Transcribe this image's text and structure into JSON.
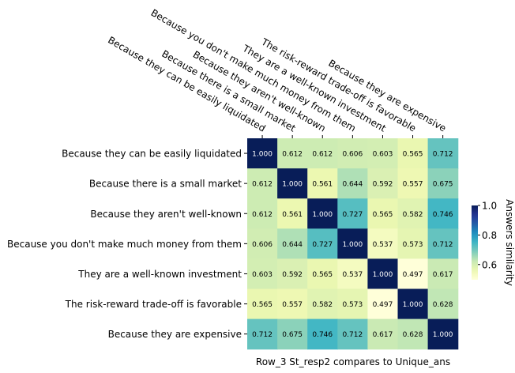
{
  "chart_data": {
    "type": "heatmap",
    "xlabel": "Row_3 St_resp2 compares to Unique_ans",
    "ylabel": "",
    "title": "",
    "row_labels": [
      "Because they can be easily liquidated",
      "Because there is a small market",
      "Because they aren't well-known",
      "Because you don't make much money from them",
      "They are a well-known investment",
      "The risk-reward trade-off is favorable",
      "Because they are expensive"
    ],
    "col_labels": [
      "Because they can be easily liquidated",
      "Because there is a small market",
      "Because they aren't well-known",
      "Because you don't make much money from them",
      "They are a well-known investment",
      "The risk-reward trade-off is favorable",
      "Because they are expensive"
    ],
    "values": [
      [
        1.0,
        0.612,
        0.612,
        0.606,
        0.603,
        0.565,
        0.712
      ],
      [
        0.612,
        1.0,
        0.561,
        0.644,
        0.592,
        0.557,
        0.675
      ],
      [
        0.612,
        0.561,
        1.0,
        0.727,
        0.565,
        0.582,
        0.746
      ],
      [
        0.606,
        0.644,
        0.727,
        1.0,
        0.537,
        0.573,
        0.712
      ],
      [
        0.603,
        0.592,
        0.565,
        0.537,
        1.0,
        0.497,
        0.617
      ],
      [
        0.565,
        0.557,
        0.582,
        0.573,
        0.497,
        1.0,
        0.628
      ],
      [
        0.712,
        0.675,
        0.746,
        0.712,
        0.617,
        0.628,
        1.0
      ]
    ],
    "colorbar": {
      "label": "Answers similarity",
      "vmin": 0.497,
      "vmax": 1.0,
      "ticks": [
        0.6,
        0.8,
        1.0
      ],
      "tick_labels": [
        "0.6",
        "0.8",
        "1.0"
      ],
      "colormap": "YlGnBu"
    },
    "grid": false,
    "legend": "none"
  }
}
